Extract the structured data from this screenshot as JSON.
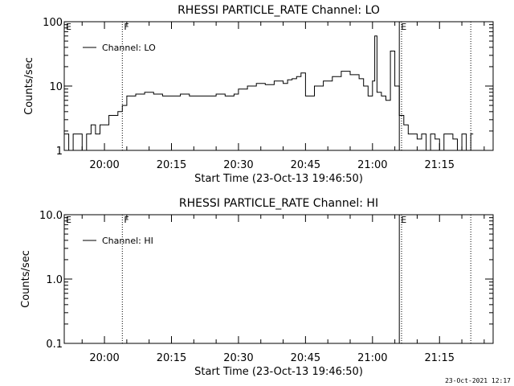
{
  "footer": {
    "timestamp": "23-Oct-2021 12:17"
  },
  "chart_data": [
    {
      "type": "line",
      "title": "RHESSI PARTICLE_RATE Channel: LO",
      "xlabel": "Start Time (23-Oct-13 19:46:50)",
      "ylabel": "Counts/sec",
      "y_scale": "log",
      "ylim": [
        1,
        100
      ],
      "xlim": [
        "19:51",
        "21:27"
      ],
      "x_ticks": [
        "20:00",
        "20:15",
        "20:30",
        "20:45",
        "21:00",
        "21:15"
      ],
      "y_ticks": [
        "1",
        "10",
        "100"
      ],
      "legend": {
        "entries": [
          "Channel: LO"
        ],
        "placement": "top-left"
      },
      "markers": [
        {
          "label": "E",
          "time": "19:51"
        },
        {
          "label": "F",
          "time": "20:04"
        },
        {
          "label": "E",
          "time": "21:06"
        }
      ],
      "vertical_lines": [
        {
          "time": "20:04",
          "style": "dotted"
        },
        {
          "time": "21:06",
          "style": "solid"
        },
        {
          "time": "21:06:30",
          "style": "dotted"
        },
        {
          "time": "21:22",
          "style": "dotted"
        }
      ],
      "series": [
        {
          "name": "Channel: LO",
          "x": [
            "19:51",
            "19:52",
            "19:53",
            "19:54",
            "19:55",
            "19:56",
            "19:57",
            "19:58",
            "19:59",
            "20:00",
            "20:01",
            "20:02",
            "20:03",
            "20:04",
            "20:05",
            "20:07",
            "20:09",
            "20:11",
            "20:13",
            "20:15",
            "20:17",
            "20:19",
            "20:21",
            "20:23",
            "20:25",
            "20:27",
            "20:29",
            "20:30",
            "20:32",
            "20:34",
            "20:36",
            "20:38",
            "20:40",
            "20:41",
            "20:42",
            "20:43",
            "20:44",
            "20:45",
            "20:47",
            "20:49",
            "20:51",
            "20:53",
            "20:55",
            "20:57",
            "20:58",
            "20:59",
            "21:00",
            "21:00:30",
            "21:01",
            "21:02",
            "21:03",
            "21:04",
            "21:05",
            "21:06",
            "21:07",
            "21:08",
            "21:09",
            "21:10",
            "21:11",
            "21:12",
            "21:13",
            "21:14",
            "21:15",
            "21:16",
            "21:17",
            "21:18",
            "21:19",
            "21:20",
            "21:21",
            "21:22"
          ],
          "y": [
            1.8,
            1.0,
            1.8,
            1.8,
            1.0,
            1.8,
            2.5,
            1.8,
            2.5,
            2.5,
            3.5,
            3.5,
            4.0,
            5.0,
            7.0,
            7.5,
            8.0,
            7.5,
            7.0,
            7.0,
            7.5,
            7.0,
            7.0,
            7.0,
            7.5,
            7.0,
            7.5,
            9.0,
            10.0,
            11.0,
            10.5,
            12.0,
            11.0,
            12.5,
            13.0,
            14.0,
            16.0,
            7.0,
            10.0,
            12.0,
            14.0,
            17.0,
            15.0,
            13.0,
            10.0,
            7.0,
            12.0,
            60.0,
            8.0,
            7.0,
            6.0,
            35.0,
            10.0,
            3.5,
            2.5,
            1.8,
            1.8,
            1.5,
            1.8,
            1.0,
            1.8,
            1.5,
            1.0,
            1.8,
            1.8,
            1.5,
            1.0,
            1.8,
            1.0,
            1.8
          ]
        }
      ]
    },
    {
      "type": "line",
      "title": "RHESSI PARTICLE_RATE Channel: HI",
      "xlabel": "Start Time (23-Oct-13 19:46:50)",
      "ylabel": "Counts/sec",
      "y_scale": "log",
      "ylim": [
        0.1,
        10
      ],
      "xlim": [
        "19:51",
        "21:27"
      ],
      "x_ticks": [
        "20:00",
        "20:15",
        "20:30",
        "20:45",
        "21:00",
        "21:15"
      ],
      "y_ticks": [
        "0.1",
        "1.0",
        "10.0"
      ],
      "legend": {
        "entries": [
          "Channel: HI"
        ],
        "placement": "top-left"
      },
      "markers": [
        {
          "label": "E",
          "time": "19:51"
        },
        {
          "label": "F",
          "time": "20:04"
        },
        {
          "label": "E",
          "time": "21:06"
        }
      ],
      "vertical_lines": [
        {
          "time": "20:04",
          "style": "dotted"
        },
        {
          "time": "21:06",
          "style": "solid"
        },
        {
          "time": "21:06:30",
          "style": "dotted"
        },
        {
          "time": "21:22",
          "style": "dotted"
        }
      ],
      "series": [
        {
          "name": "Channel: HI",
          "x": [],
          "y": []
        }
      ]
    }
  ]
}
